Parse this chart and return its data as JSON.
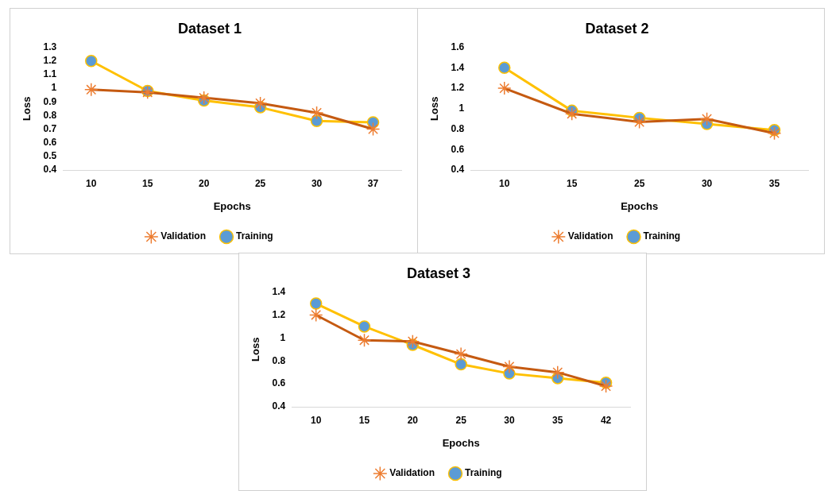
{
  "chart_data": [
    {
      "type": "line",
      "title": "Dataset 1",
      "xlabel": "Epochs",
      "ylabel": "Loss",
      "categories": [
        "10",
        "15",
        "20",
        "25",
        "30",
        "37"
      ],
      "series": [
        {
          "name": "Training",
          "color": "#ffc000",
          "marker": "circle",
          "values": [
            1.2,
            0.98,
            0.91,
            0.86,
            0.76,
            0.75
          ]
        },
        {
          "name": "Validation",
          "color": "#c55a11",
          "marker": "cross",
          "values": [
            0.99,
            0.97,
            0.93,
            0.89,
            0.82,
            0.7
          ]
        }
      ],
      "ylim": [
        0.4,
        1.3
      ],
      "yticks": [
        0.4,
        0.5,
        0.6,
        0.7,
        0.8,
        0.9,
        1,
        1.1,
        1.2,
        1.3
      ],
      "grid": false,
      "legend": "bottom"
    },
    {
      "type": "line",
      "title": "Dataset 2",
      "xlabel": "Epochs",
      "ylabel": "Loss",
      "categories": [
        "10",
        "15",
        "25",
        "30",
        "35"
      ],
      "series": [
        {
          "name": "Training",
          "color": "#ffc000",
          "marker": "circle",
          "values": [
            1.4,
            0.98,
            0.91,
            0.85,
            0.79
          ]
        },
        {
          "name": "Validation",
          "color": "#c55a11",
          "marker": "cross",
          "values": [
            1.2,
            0.95,
            0.87,
            0.9,
            0.76
          ]
        }
      ],
      "ylim": [
        0.4,
        1.6
      ],
      "yticks": [
        0.4,
        0.6,
        0.8,
        1,
        1.2,
        1.4,
        1.6
      ],
      "grid": false,
      "legend": "bottom"
    },
    {
      "type": "line",
      "title": "Dataset 3",
      "xlabel": "Epochs",
      "ylabel": "Loss",
      "categories": [
        "10",
        "15",
        "20",
        "25",
        "30",
        "35",
        "42"
      ],
      "series": [
        {
          "name": "Training",
          "color": "#ffc000",
          "marker": "circle",
          "values": [
            1.3,
            1.1,
            0.94,
            0.77,
            0.69,
            0.65,
            0.61
          ]
        },
        {
          "name": "Validation",
          "color": "#c55a11",
          "marker": "cross",
          "values": [
            1.2,
            0.98,
            0.97,
            0.86,
            0.75,
            0.7,
            0.58
          ]
        }
      ],
      "ylim": [
        0.4,
        1.4
      ],
      "yticks": [
        0.4,
        0.6,
        0.8,
        1,
        1.2,
        1.4
      ],
      "grid": false,
      "legend": "bottom"
    }
  ]
}
